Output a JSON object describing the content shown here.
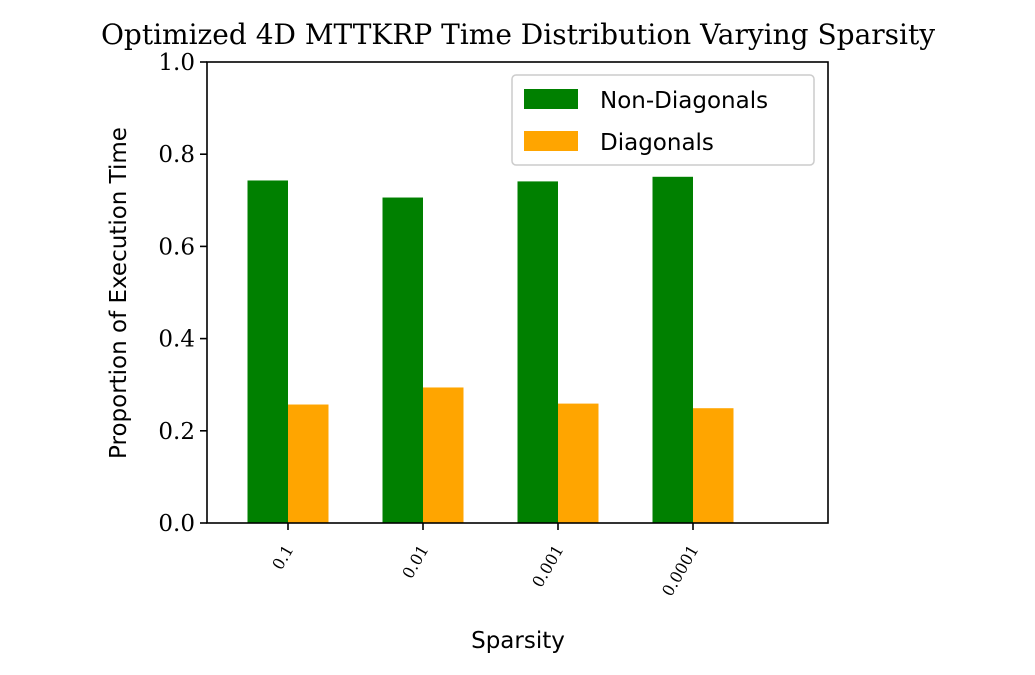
{
  "chart_data": {
    "type": "bar",
    "title": "Optimized 4D MTTKRP Time Distribution Varying Sparsity",
    "xlabel": "Sparsity",
    "ylabel": "Proportion of Execution Time",
    "categories": [
      "0.1",
      "0.01",
      "0.001",
      "0.0001"
    ],
    "series": [
      {
        "name": "Non-Diagonals",
        "color": "#008000",
        "values": [
          0.743,
          0.706,
          0.741,
          0.751
        ]
      },
      {
        "name": "Diagonals",
        "color": "#ffa500",
        "values": [
          0.257,
          0.294,
          0.259,
          0.249
        ]
      }
    ],
    "ylim": [
      0,
      1.0
    ],
    "yticks": [
      "0.0",
      "0.2",
      "0.4",
      "0.6",
      "0.8",
      "1.0"
    ],
    "xlim": [
      -0.6,
      4.0
    ],
    "legend": "top-right",
    "grid": false
  }
}
